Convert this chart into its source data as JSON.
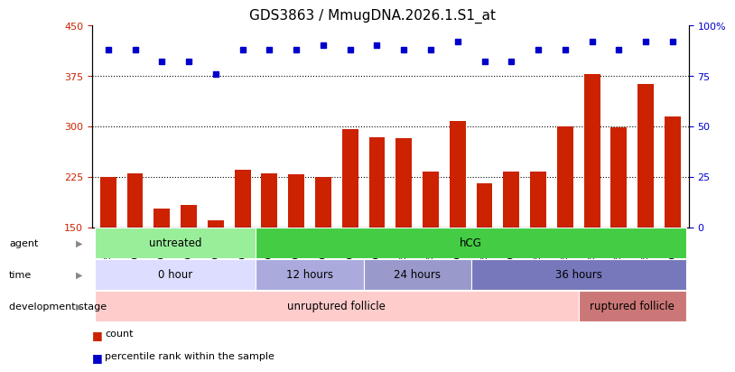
{
  "title": "GDS3863 / MmugDNA.2026.1.S1_at",
  "samples": [
    "GSM563219",
    "GSM563220",
    "GSM563221",
    "GSM563222",
    "GSM563223",
    "GSM563224",
    "GSM563225",
    "GSM563226",
    "GSM563227",
    "GSM563228",
    "GSM563229",
    "GSM563230",
    "GSM563231",
    "GSM563232",
    "GSM563233",
    "GSM563234",
    "GSM563235",
    "GSM563236",
    "GSM563237",
    "GSM563238",
    "GSM563239",
    "GSM563240"
  ],
  "counts": [
    225,
    230,
    178,
    183,
    160,
    235,
    230,
    228,
    224,
    295,
    283,
    282,
    232,
    308,
    215,
    233,
    233,
    300,
    378,
    298,
    363,
    315
  ],
  "percentiles": [
    88,
    88,
    82,
    82,
    76,
    88,
    88,
    88,
    90,
    88,
    90,
    88,
    88,
    92,
    82,
    82,
    88,
    88,
    92,
    88,
    92,
    92
  ],
  "bar_color": "#cc2200",
  "dot_color": "#0000cc",
  "ylim_left": [
    150,
    450
  ],
  "ylim_right": [
    0,
    100
  ],
  "yticks_left": [
    150,
    225,
    300,
    375,
    450
  ],
  "yticks_right": [
    0,
    25,
    50,
    75,
    100
  ],
  "grid_values": [
    225,
    300,
    375
  ],
  "agent_sections": [
    {
      "label": "untreated",
      "start": 0,
      "end": 5,
      "color": "#99ee99"
    },
    {
      "label": "hCG",
      "start": 6,
      "end": 21,
      "color": "#44cc44"
    }
  ],
  "time_sections": [
    {
      "label": "0 hour",
      "start": 0,
      "end": 5,
      "color": "#ddddff"
    },
    {
      "label": "12 hours",
      "start": 6,
      "end": 9,
      "color": "#aaaadd"
    },
    {
      "label": "24 hours",
      "start": 10,
      "end": 13,
      "color": "#9999cc"
    },
    {
      "label": "36 hours",
      "start": 14,
      "end": 21,
      "color": "#7777bb"
    }
  ],
  "dev_sections": [
    {
      "label": "unruptured follicle",
      "start": 0,
      "end": 17,
      "color": "#ffcccc"
    },
    {
      "label": "ruptured follicle",
      "start": 18,
      "end": 21,
      "color": "#cc7777"
    }
  ],
  "row_labels": [
    "agent",
    "time",
    "development stage"
  ],
  "legend_items": [
    {
      "color": "#cc2200",
      "label": "count"
    },
    {
      "color": "#0000cc",
      "label": "percentile rank within the sample"
    }
  ]
}
